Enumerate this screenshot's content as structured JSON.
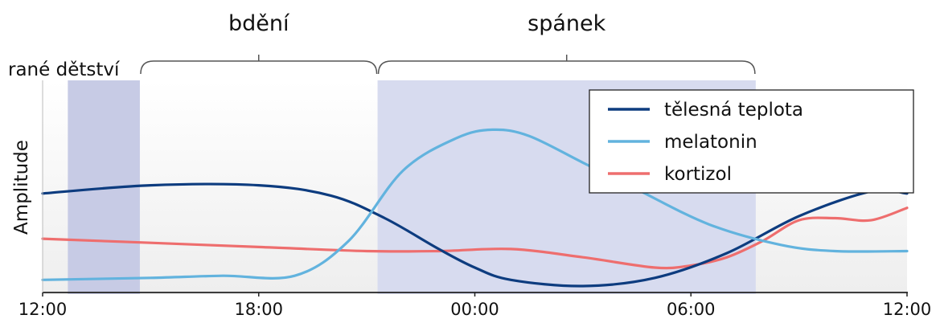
{
  "chart_data": {
    "type": "line",
    "title": "",
    "xlabel": "",
    "ylabel": "Amplitude",
    "x_ticks": [
      "12:00",
      "18:00",
      "00:00",
      "06:00",
      "12:00"
    ],
    "x_range_hours": [
      0,
      24
    ],
    "y_range": [
      0,
      1
    ],
    "grid": false,
    "legend_position": "top-right",
    "phase_labels": {
      "early": "rané dětství",
      "awake": "bdění",
      "sleep": "spánek"
    },
    "shaded_regions": [
      {
        "label": "rané dětství",
        "start": 0.7,
        "end": 2.7
      },
      {
        "label": "spánek",
        "start": 9.3,
        "end": 19.8
      }
    ],
    "brackets": [
      {
        "label": "bdění",
        "start": 2.7,
        "end": 9.3
      },
      {
        "label": "spánek",
        "start": 9.3,
        "end": 19.8
      }
    ],
    "series": [
      {
        "name": "tělesná teplota",
        "color": "#0d3c7f",
        "x": [
          0,
          3,
          6,
          8,
          9.5,
          11,
          12,
          13,
          15,
          17,
          19,
          21,
          23,
          24
        ],
        "y": [
          0.45,
          0.49,
          0.49,
          0.44,
          0.33,
          0.18,
          0.09,
          0.03,
          0.0,
          0.04,
          0.16,
          0.34,
          0.46,
          0.45
        ]
      },
      {
        "name": "melatonin",
        "color": "#62b3de",
        "x": [
          0,
          3,
          5,
          7,
          8.5,
          10,
          11.5,
          12.5,
          13.5,
          15,
          16.5,
          18.5,
          20.5,
          22,
          24
        ],
        "y": [
          0.03,
          0.04,
          0.05,
          0.05,
          0.22,
          0.56,
          0.72,
          0.76,
          0.73,
          0.6,
          0.47,
          0.3,
          0.2,
          0.17,
          0.17
        ]
      },
      {
        "name": "kortizol",
        "color": "#ee6e6e",
        "x": [
          0,
          3,
          6,
          9,
          11,
          13,
          15,
          17,
          18,
          19,
          20,
          21,
          22,
          23,
          24
        ],
        "y": [
          0.23,
          0.21,
          0.19,
          0.17,
          0.17,
          0.18,
          0.14,
          0.09,
          0.1,
          0.14,
          0.22,
          0.32,
          0.33,
          0.32,
          0.38
        ]
      }
    ]
  }
}
